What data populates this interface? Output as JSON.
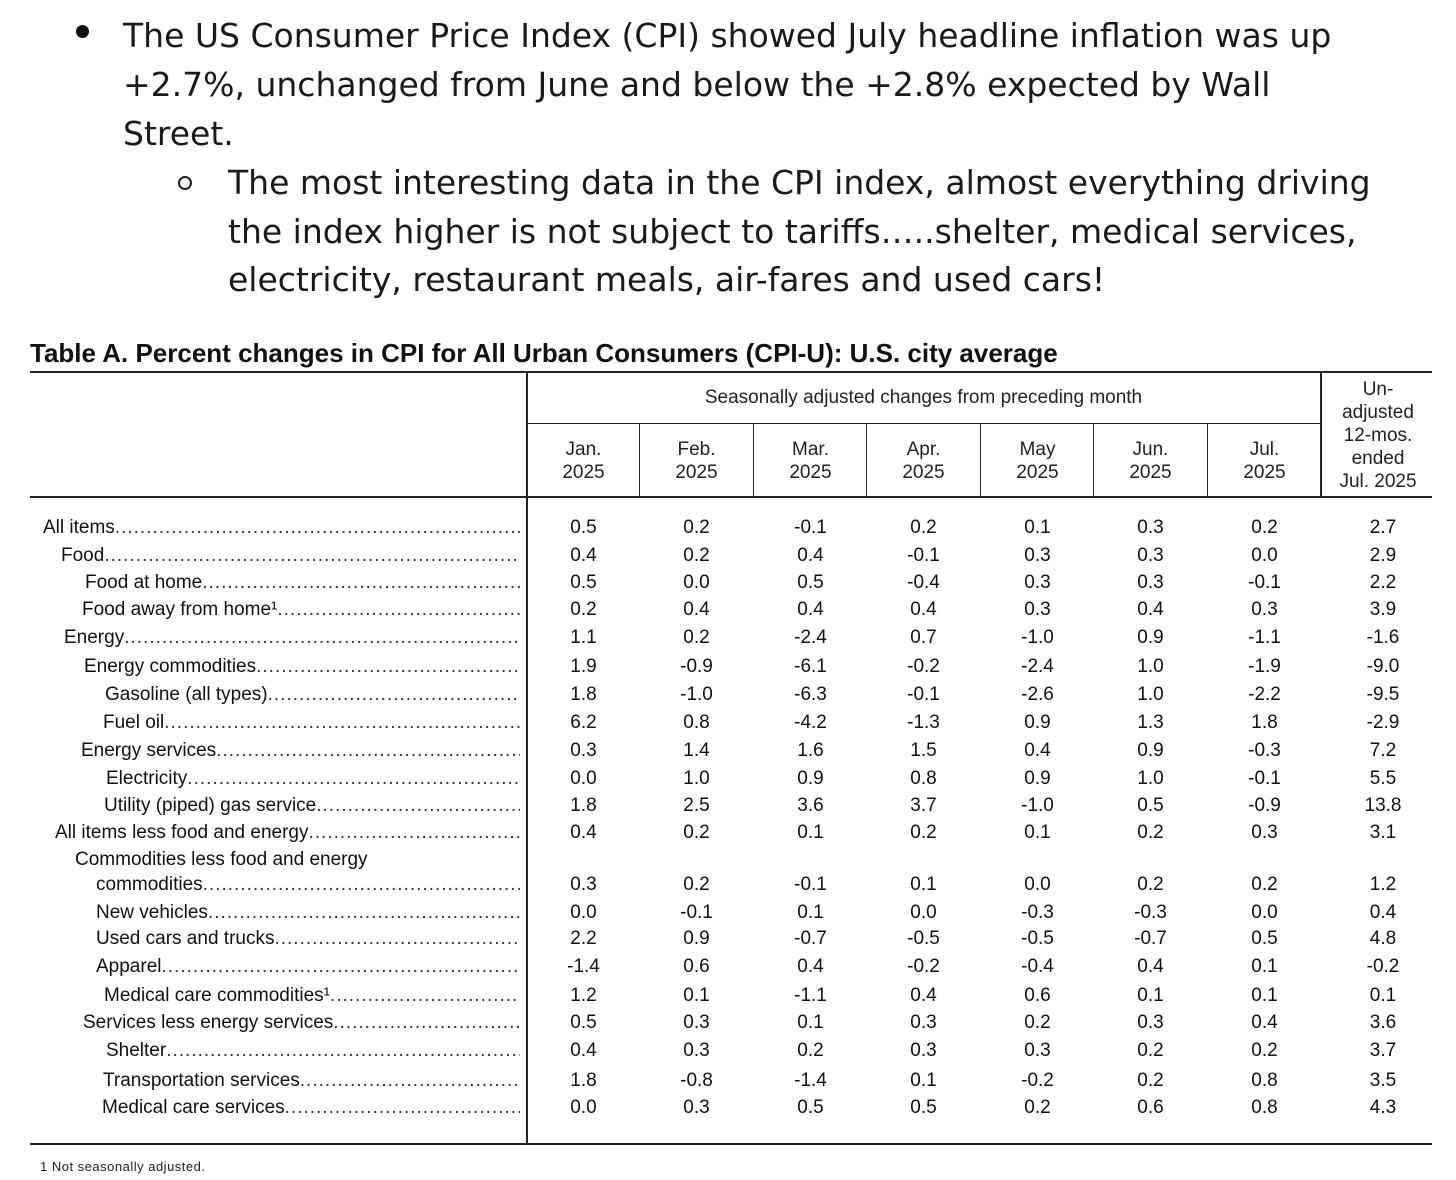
{
  "bullets": {
    "main_lines": [
      "The US Consumer Price Index (CPI) showed July headline inflation was up",
      "+2.7%, unchanged from June and below the +2.8% expected by Wall",
      "Street."
    ],
    "sub_lines": [
      "The most interesting data in the CPI index, almost everything driving",
      "the index higher is not subject to tariffs…..shelter, medical services,",
      "electricity, restaurant meals, air-fares and used cars!"
    ]
  },
  "table": {
    "title": "Table A. Percent changes in CPI for All Urban Consumers (CPI-U): U.S. city average",
    "group_header": "Seasonally adjusted changes from preceding month",
    "last_header": [
      "Un-",
      "adjusted",
      "12-mos.",
      "ended",
      "Jul. 2025"
    ],
    "columns": [
      [
        "Jan.",
        "2025"
      ],
      [
        "Feb.",
        "2025"
      ],
      [
        "Mar.",
        "2025"
      ],
      [
        "Apr.",
        "2025"
      ],
      [
        "May",
        "2025"
      ],
      [
        "Jun.",
        "2025"
      ],
      [
        "Jul.",
        "2025"
      ]
    ],
    "rows": [
      {
        "label": "All items",
        "values": [
          "0.5",
          "0.2",
          "-0.1",
          "0.2",
          "0.1",
          "0.3",
          "0.2",
          "2.7"
        ]
      },
      {
        "label": "Food",
        "values": [
          "0.4",
          "0.2",
          "0.4",
          "-0.1",
          "0.3",
          "0.3",
          "0.0",
          "2.9"
        ]
      },
      {
        "label": "Food at home",
        "values": [
          "0.5",
          "0.0",
          "0.5",
          "-0.4",
          "0.3",
          "0.3",
          "-0.1",
          "2.2"
        ]
      },
      {
        "label": "Food away from home¹",
        "values": [
          "0.2",
          "0.4",
          "0.4",
          "0.4",
          "0.3",
          "0.4",
          "0.3",
          "3.9"
        ]
      },
      {
        "label": "Energy",
        "values": [
          "1.1",
          "0.2",
          "-2.4",
          "0.7",
          "-1.0",
          "0.9",
          "-1.1",
          "-1.6"
        ]
      },
      {
        "label": "Energy commodities",
        "values": [
          "1.9",
          "-0.9",
          "-6.1",
          "-0.2",
          "-2.4",
          "1.0",
          "-1.9",
          "-9.0"
        ]
      },
      {
        "label": "Gasoline (all types)",
        "values": [
          "1.8",
          "-1.0",
          "-6.3",
          "-0.1",
          "-2.6",
          "1.0",
          "-2.2",
          "-9.5"
        ]
      },
      {
        "label": "Fuel oil",
        "values": [
          "6.2",
          "0.8",
          "-4.2",
          "-1.3",
          "0.9",
          "1.3",
          "1.8",
          "-2.9"
        ]
      },
      {
        "label": "Energy services",
        "values": [
          "0.3",
          "1.4",
          "1.6",
          "1.5",
          "0.4",
          "0.9",
          "-0.3",
          "7.2"
        ]
      },
      {
        "label": "Electricity",
        "values": [
          "0.0",
          "1.0",
          "0.9",
          "0.8",
          "0.9",
          "1.0",
          "-0.1",
          "5.5"
        ]
      },
      {
        "label": "Utility (piped) gas service",
        "values": [
          "1.8",
          "2.5",
          "3.6",
          "3.7",
          "-1.0",
          "0.5",
          "-0.9",
          "13.8"
        ]
      },
      {
        "label": "All items less food and energy",
        "values": [
          "0.4",
          "0.2",
          "0.1",
          "0.2",
          "0.1",
          "0.2",
          "0.3",
          "3.1"
        ]
      },
      {
        "label_pre": "Commodities less food and energy",
        "label": "commodities",
        "values": [
          "0.3",
          "0.2",
          "-0.1",
          "0.1",
          "0.0",
          "0.2",
          "0.2",
          "1.2"
        ]
      },
      {
        "label": "New vehicles",
        "values": [
          "0.0",
          "-0.1",
          "0.1",
          "0.0",
          "-0.3",
          "-0.3",
          "0.0",
          "0.4"
        ]
      },
      {
        "label": "Used cars and trucks",
        "values": [
          "2.2",
          "0.9",
          "-0.7",
          "-0.5",
          "-0.5",
          "-0.7",
          "0.5",
          "4.8"
        ]
      },
      {
        "label": "Apparel",
        "values": [
          "-1.4",
          "0.6",
          "0.4",
          "-0.2",
          "-0.4",
          "0.4",
          "0.1",
          "-0.2"
        ]
      },
      {
        "label": "Medical care commodities¹",
        "values": [
          "1.2",
          "0.1",
          "-1.1",
          "0.4",
          "0.6",
          "0.1",
          "0.1",
          "0.1"
        ]
      },
      {
        "label": "Services less energy services",
        "values": [
          "0.5",
          "0.3",
          "0.1",
          "0.3",
          "0.2",
          "0.3",
          "0.4",
          "3.6"
        ]
      },
      {
        "label": "Shelter",
        "values": [
          "0.4",
          "0.3",
          "0.2",
          "0.3",
          "0.3",
          "0.2",
          "0.2",
          "3.7"
        ]
      },
      {
        "label": "Transportation services",
        "values": [
          "1.8",
          "-0.8",
          "-1.4",
          "0.1",
          "-0.2",
          "0.2",
          "0.8",
          "3.5"
        ]
      },
      {
        "label": "Medical care services",
        "values": [
          "0.0",
          "0.3",
          "0.5",
          "0.5",
          "0.2",
          "0.6",
          "0.8",
          "4.3"
        ]
      }
    ],
    "footnote": "1  Not seasonally adjusted."
  }
}
